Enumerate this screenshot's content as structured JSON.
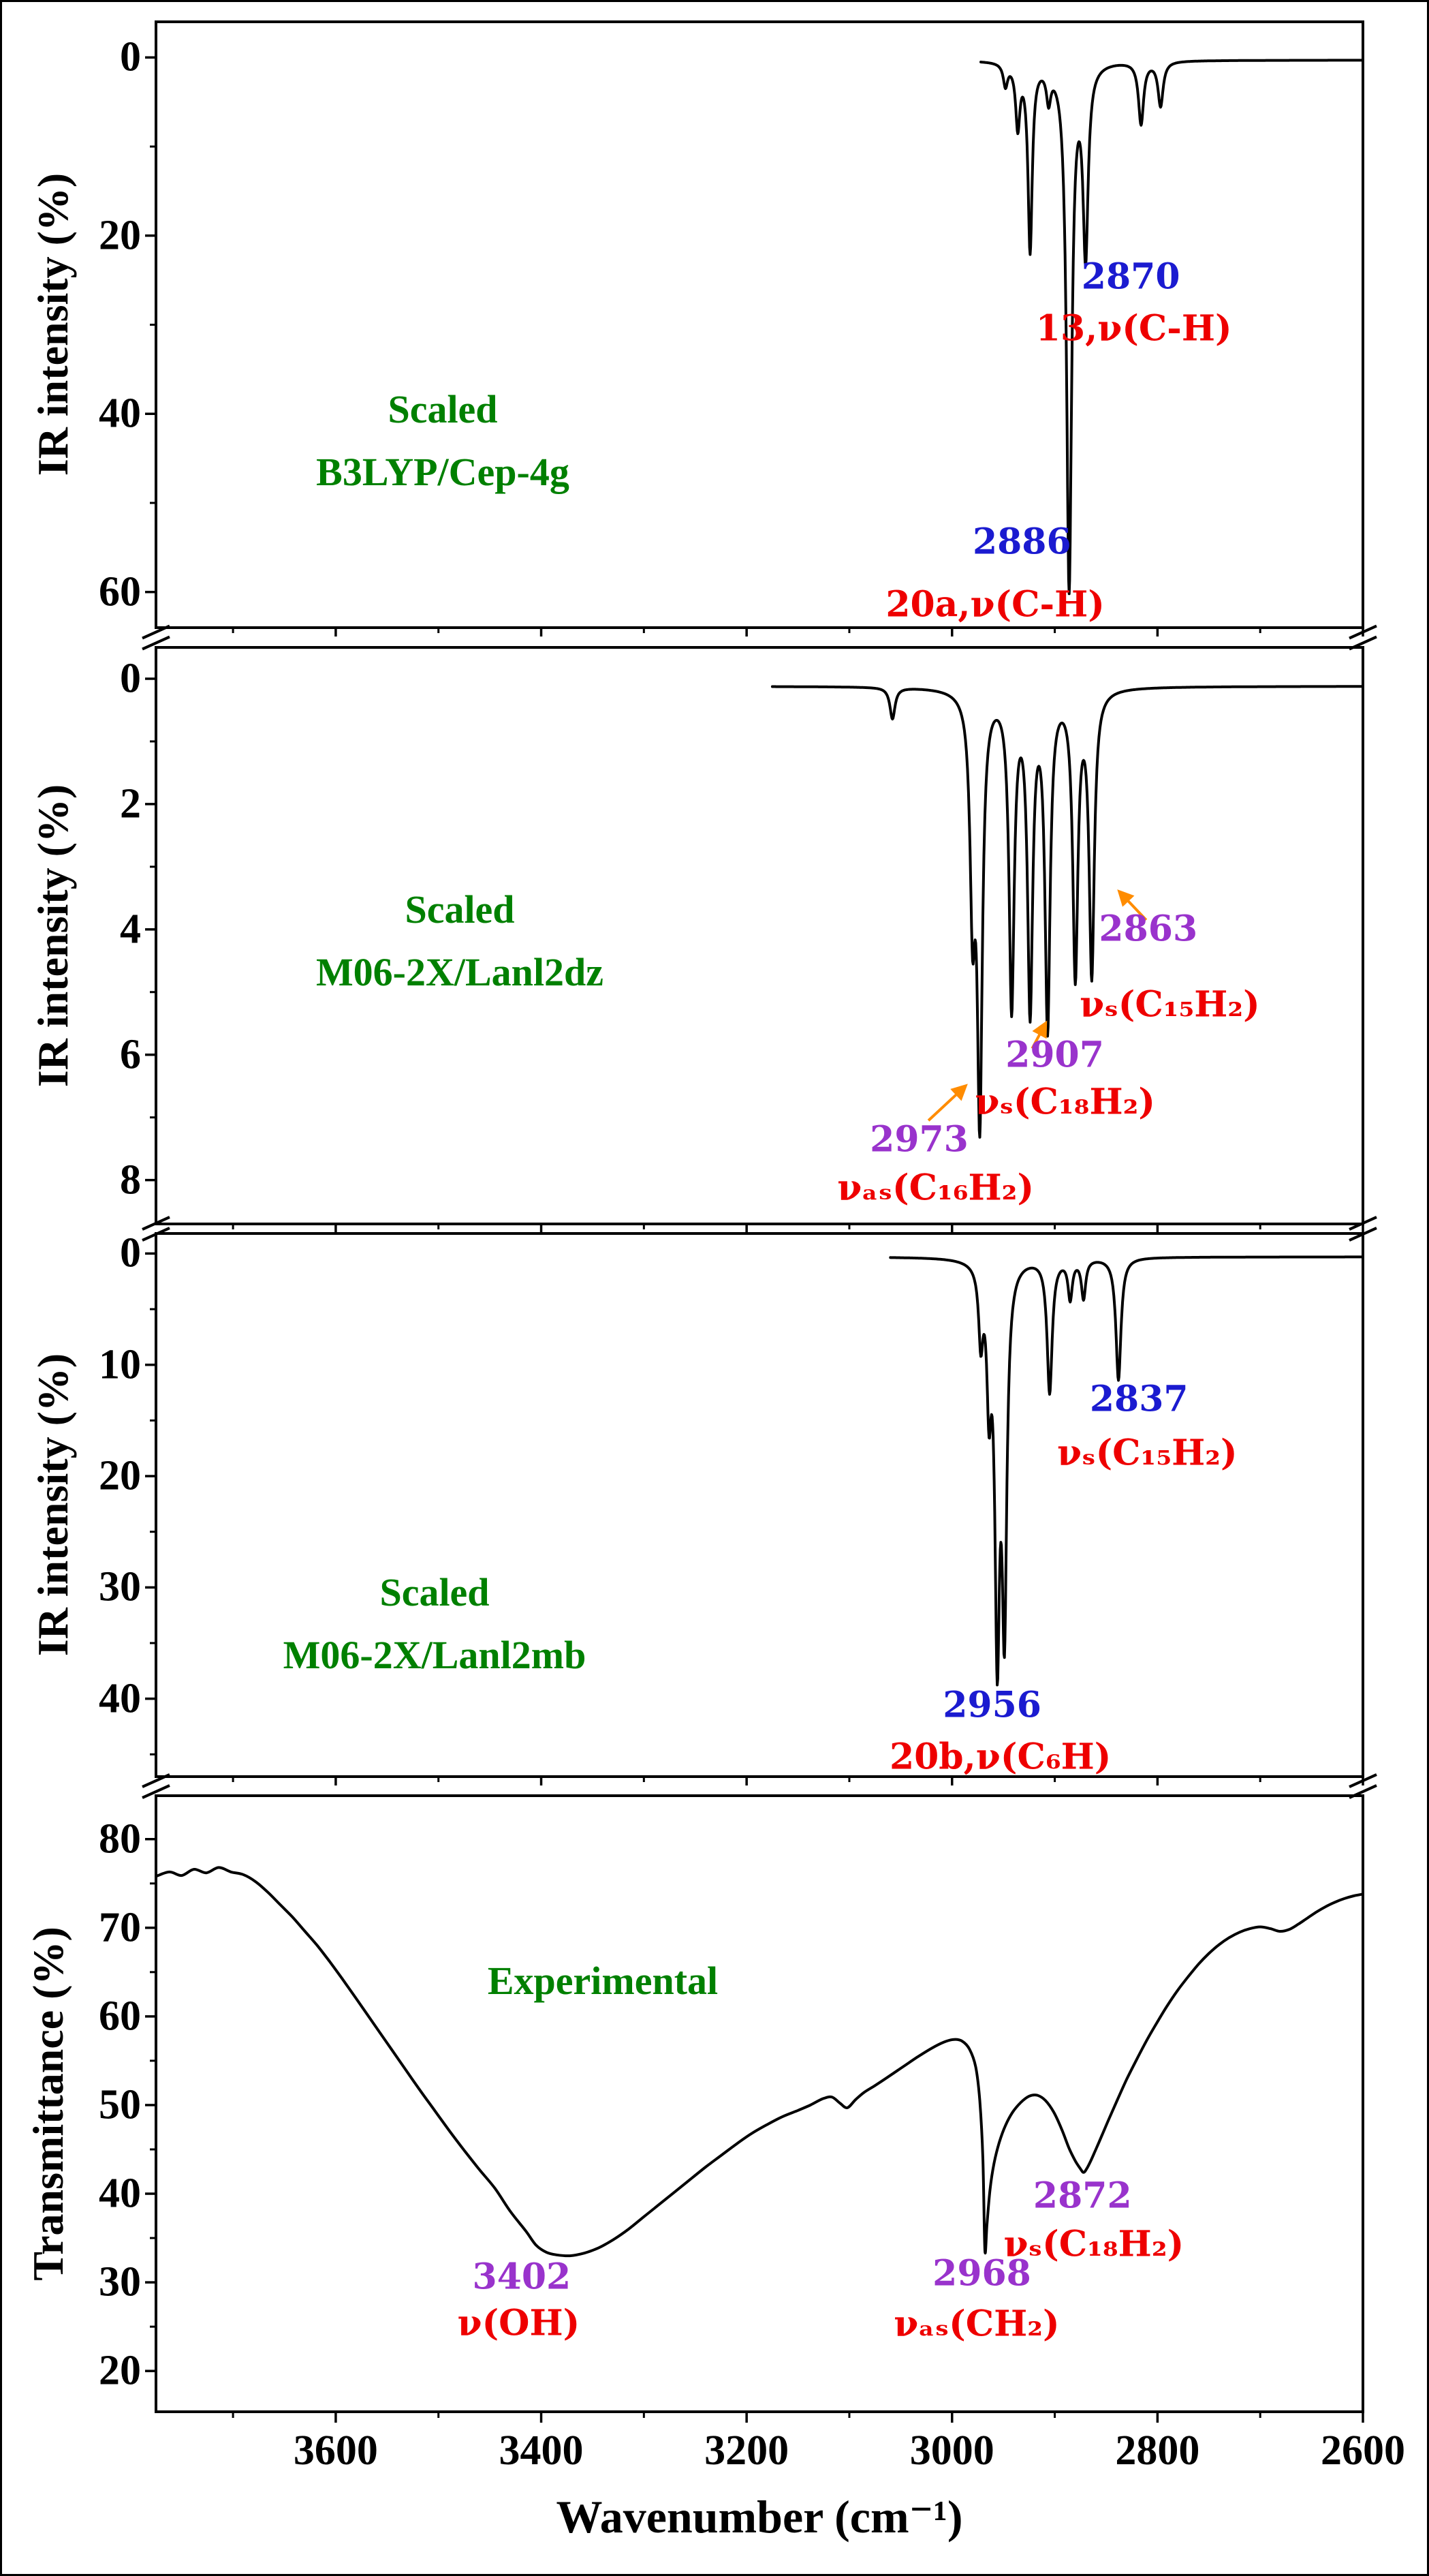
{
  "figure": {
    "x_axis": {
      "title": "Wavenumber (cm⁻¹)",
      "domain": [
        3775,
        2600
      ],
      "major_ticks": [
        3600,
        3400,
        3200,
        3000,
        2800,
        2600
      ],
      "minor_ticks": [
        3700,
        3500,
        3300,
        3100,
        2900,
        2700
      ]
    },
    "colors": {
      "blue": "#1b1bd0",
      "purple": "#9933cc",
      "red": "#ee0000",
      "green": "#008000",
      "orange": "#ff8c00",
      "curve": "#000000"
    }
  },
  "chart_data": [
    {
      "type": "line",
      "title": [
        "Scaled",
        "B3LYP/Cep-4g"
      ],
      "ylabel": "IR intensity (%)",
      "y_ticks": [
        0,
        20,
        40,
        60
      ],
      "y_minor_ticks": [
        10,
        30,
        50
      ],
      "ylim": [
        -4,
        64
      ],
      "y_inverted": true,
      "curve_range": [
        2972,
        2600
      ],
      "baseline": 0.3,
      "peaks": [
        {
          "center": 2948,
          "height": 2.5,
          "width": 2.5
        },
        {
          "center": 2936,
          "height": 7,
          "width": 2.5
        },
        {
          "center": 2924,
          "height": 21,
          "width": 2.5
        },
        {
          "center": 2906,
          "height": 3.5,
          "width": 2.5
        },
        {
          "center": 2886,
          "height": 59,
          "width": 3
        },
        {
          "center": 2870,
          "height": 21,
          "width": 3
        },
        {
          "center": 2816,
          "height": 7,
          "width": 3
        },
        {
          "center": 2797,
          "height": 5,
          "width": 3
        }
      ],
      "annotations": [
        {
          "text": "2870",
          "color": "blue",
          "cm": 2826,
          "v": 24.6
        },
        {
          "text": "13,ν(C-H)",
          "color": "red",
          "cm": 2823,
          "v": 30.4
        },
        {
          "text": "2886",
          "color": "blue",
          "cm": 2932,
          "v": 54.4
        },
        {
          "text": "20a,ν(C-H)",
          "color": "red",
          "cm": 2958,
          "v": 61.4
        }
      ],
      "arrows": []
    },
    {
      "type": "line",
      "title": [
        "Scaled",
        "M06-2X/Lanl2dz"
      ],
      "ylabel": "IR intensity (%)",
      "y_ticks": [
        0,
        2,
        4,
        6,
        8
      ],
      "y_minor_ticks": [
        1,
        3,
        5,
        7
      ],
      "ylim": [
        -0.5,
        8.7
      ],
      "y_inverted": true,
      "curve_range": [
        3175,
        2600
      ],
      "baseline": 0.12,
      "peaks": [
        {
          "center": 3058,
          "height": 0.5,
          "width": 3
        },
        {
          "center": 2980,
          "height": 3.3,
          "width": 3
        },
        {
          "center": 2973,
          "height": 6.6,
          "width": 3
        },
        {
          "center": 2942,
          "height": 5.0,
          "width": 3
        },
        {
          "center": 2924,
          "height": 5.0,
          "width": 3
        },
        {
          "center": 2907,
          "height": 5.3,
          "width": 3
        },
        {
          "center": 2880,
          "height": 4.5,
          "width": 3
        },
        {
          "center": 2864,
          "height": 4.5,
          "width": 3
        }
      ],
      "annotations": [
        {
          "text": "2863",
          "color": "purple",
          "cm": 2809,
          "v": 3.99
        },
        {
          "text": "νₛ(C₁₅H₂)",
          "color": "red",
          "cm": 2788,
          "v": 5.2
        },
        {
          "text": "2907",
          "color": "purple",
          "cm": 2900,
          "v": 6.0
        },
        {
          "text": "νₛ(C₁₈H₂)",
          "color": "red",
          "cm": 2890,
          "v": 6.75
        },
        {
          "text": "2973",
          "color": "purple",
          "cm": 3032,
          "v": 7.35
        },
        {
          "text": "νₐₛ(C₁₆H₂)",
          "color": "red",
          "cm": 3016,
          "v": 8.12
        }
      ],
      "arrows": [
        {
          "from": [
            3023,
            7.05
          ],
          "to": [
            2987,
            6.5
          ]
        },
        {
          "from": [
            2922,
            5.9
          ],
          "to": [
            2909,
            5.5
          ]
        },
        {
          "from": [
            2811,
            3.85
          ],
          "to": [
            2837,
            3.4
          ]
        }
      ]
    },
    {
      "type": "line",
      "title": [
        "Scaled",
        "M06-2X/Lanl2mb"
      ],
      "ylabel": "IR intensity (%)",
      "y_ticks": [
        0,
        10,
        20,
        30,
        40
      ],
      "y_minor_ticks": [
        5,
        15,
        25,
        35,
        45
      ],
      "ylim": [
        -1.8,
        47
      ],
      "y_inverted": true,
      "curve_range": [
        3060,
        2600
      ],
      "baseline": 0.3,
      "peaks": [
        {
          "center": 2972,
          "height": 6.5,
          "width": 2.5
        },
        {
          "center": 2964,
          "height": 11,
          "width": 2.5
        },
        {
          "center": 2956,
          "height": 33,
          "width": 2.8
        },
        {
          "center": 2949,
          "height": 31,
          "width": 2.8
        },
        {
          "center": 2905,
          "height": 12,
          "width": 3
        },
        {
          "center": 2885,
          "height": 3.5,
          "width": 2.5
        },
        {
          "center": 2872,
          "height": 3.5,
          "width": 2.5
        },
        {
          "center": 2838,
          "height": 11,
          "width": 3
        }
      ],
      "annotations": [
        {
          "text": "2837",
          "color": "blue",
          "cm": 2818,
          "v": 13.1
        },
        {
          "text": "νₛ(C₁₅H₂)",
          "color": "red",
          "cm": 2810,
          "v": 17.9
        },
        {
          "text": "2956",
          "color": "blue",
          "cm": 2961,
          "v": 40.6
        },
        {
          "text": "20b,ν(C₆H)",
          "color": "red",
          "cm": 2953,
          "v": 45.2
        }
      ],
      "arrows": []
    },
    {
      "type": "line",
      "title": [
        "Experimental"
      ],
      "ylabel": "Transmittance (%)",
      "y_ticks": [
        80,
        70,
        60,
        50,
        40,
        30,
        20
      ],
      "y_minor_ticks": [
        75,
        65,
        55,
        45,
        35,
        25
      ],
      "ylim": [
        15.4,
        84.9
      ],
      "y_inverted": false,
      "points": [
        [
          3775,
          75.8
        ],
        [
          3762,
          76.3
        ],
        [
          3750,
          75.9
        ],
        [
          3738,
          76.6
        ],
        [
          3726,
          76.2
        ],
        [
          3714,
          76.8
        ],
        [
          3702,
          76.3
        ],
        [
          3690,
          76.0
        ],
        [
          3678,
          75.2
        ],
        [
          3666,
          74.0
        ],
        [
          3654,
          72.6
        ],
        [
          3642,
          71.2
        ],
        [
          3630,
          69.6
        ],
        [
          3618,
          68.0
        ],
        [
          3606,
          66.2
        ],
        [
          3594,
          64.3
        ],
        [
          3580,
          62.0
        ],
        [
          3565,
          59.5
        ],
        [
          3550,
          57.0
        ],
        [
          3535,
          54.5
        ],
        [
          3520,
          52.0
        ],
        [
          3505,
          49.6
        ],
        [
          3490,
          47.2
        ],
        [
          3475,
          44.9
        ],
        [
          3460,
          42.7
        ],
        [
          3445,
          40.6
        ],
        [
          3430,
          38.0
        ],
        [
          3415,
          35.8
        ],
        [
          3405,
          34.2
        ],
        [
          3395,
          33.4
        ],
        [
          3385,
          33.1
        ],
        [
          3372,
          33.0
        ],
        [
          3358,
          33.3
        ],
        [
          3344,
          33.9
        ],
        [
          3330,
          34.8
        ],
        [
          3315,
          36.0
        ],
        [
          3300,
          37.4
        ],
        [
          3285,
          38.8
        ],
        [
          3270,
          40.2
        ],
        [
          3255,
          41.6
        ],
        [
          3240,
          43.0
        ],
        [
          3225,
          44.3
        ],
        [
          3210,
          45.6
        ],
        [
          3195,
          46.8
        ],
        [
          3180,
          47.8
        ],
        [
          3165,
          48.7
        ],
        [
          3150,
          49.4
        ],
        [
          3138,
          50.0
        ],
        [
          3126,
          50.7
        ],
        [
          3117,
          50.9
        ],
        [
          3109,
          50.2
        ],
        [
          3102,
          49.7
        ],
        [
          3094,
          50.6
        ],
        [
          3086,
          51.4
        ],
        [
          3075,
          52.2
        ],
        [
          3062,
          53.2
        ],
        [
          3048,
          54.3
        ],
        [
          3034,
          55.4
        ],
        [
          3020,
          56.4
        ],
        [
          3008,
          57.1
        ],
        [
          2998,
          57.4
        ],
        [
          2990,
          57.2
        ],
        [
          2983,
          56.3
        ],
        [
          2977,
          54.3
        ],
        [
          2973,
          50.5
        ],
        [
          2970,
          44.0
        ],
        [
          2968,
          33.6
        ],
        [
          2966,
          36.5
        ],
        [
          2963,
          40.5
        ],
        [
          2959,
          43.5
        ],
        [
          2954,
          45.8
        ],
        [
          2948,
          47.7
        ],
        [
          2941,
          49.2
        ],
        [
          2933,
          50.3
        ],
        [
          2925,
          51.0
        ],
        [
          2917,
          51.1
        ],
        [
          2909,
          50.5
        ],
        [
          2901,
          49.2
        ],
        [
          2893,
          47.2
        ],
        [
          2886,
          45.1
        ],
        [
          2880,
          43.7
        ],
        [
          2875,
          42.8
        ],
        [
          2872,
          42.4
        ],
        [
          2869,
          42.8
        ],
        [
          2865,
          43.7
        ],
        [
          2860,
          45.0
        ],
        [
          2854,
          46.6
        ],
        [
          2847,
          48.5
        ],
        [
          2839,
          50.6
        ],
        [
          2830,
          52.9
        ],
        [
          2820,
          55.2
        ],
        [
          2810,
          57.4
        ],
        [
          2800,
          59.4
        ],
        [
          2790,
          61.3
        ],
        [
          2780,
          63.0
        ],
        [
          2770,
          64.5
        ],
        [
          2760,
          65.9
        ],
        [
          2750,
          67.1
        ],
        [
          2740,
          68.1
        ],
        [
          2730,
          68.9
        ],
        [
          2720,
          69.5
        ],
        [
          2710,
          69.9
        ],
        [
          2700,
          70.1
        ],
        [
          2690,
          69.9
        ],
        [
          2681,
          69.6
        ],
        [
          2672,
          69.8
        ],
        [
          2663,
          70.4
        ],
        [
          2654,
          71.1
        ],
        [
          2645,
          71.8
        ],
        [
          2636,
          72.4
        ],
        [
          2627,
          72.9
        ],
        [
          2618,
          73.3
        ],
        [
          2609,
          73.6
        ],
        [
          2600,
          73.8
        ]
      ],
      "annotations": [
        {
          "text": "3402",
          "color": "purple",
          "cm": 3419,
          "v": 30.6
        },
        {
          "text": "ν(OH)",
          "color": "red",
          "cm": 3422,
          "v": 25.4
        },
        {
          "text": "2968",
          "color": "purple",
          "cm": 2971,
          "v": 31.0
        },
        {
          "text": "νₐₛ(CH₂)",
          "color": "red",
          "cm": 2976,
          "v": 25.3
        },
        {
          "text": "2872",
          "color": "purple",
          "cm": 2873,
          "v": 39.8
        },
        {
          "text": "νₛ(C₁₈H₂)",
          "color": "red",
          "cm": 2862,
          "v": 34.3
        }
      ],
      "arrows": []
    }
  ]
}
